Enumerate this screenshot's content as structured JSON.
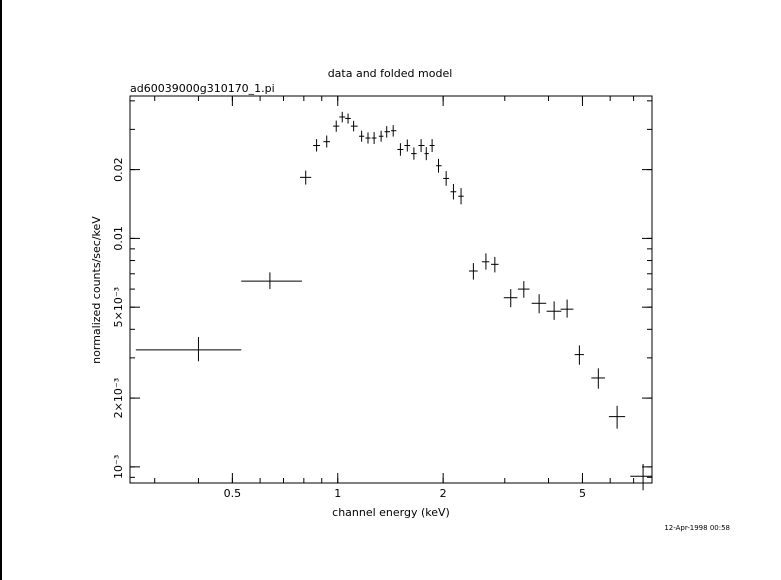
{
  "chart_data": {
    "type": "scatter",
    "title": "data and folded model",
    "subtitle": "ad60039000g310170_1.pi",
    "xlabel": "channel energy (keV)",
    "ylabel": "normalized counts/sec/keV",
    "timestamp": "12-Apr-1998 00:58",
    "x_scale": "log",
    "y_scale": "log",
    "xlim": [
      0.255,
      7.9
    ],
    "ylim": [
      0.00085,
      0.042
    ],
    "x_ticks": [
      {
        "value": 0.5,
        "label": "0.5"
      },
      {
        "value": 1,
        "label": "1"
      },
      {
        "value": 2,
        "label": "2"
      },
      {
        "value": 5,
        "label": "5"
      }
    ],
    "y_ticks": [
      {
        "value": 0.001,
        "label": "10⁻³"
      },
      {
        "value": 0.002,
        "label": "2×10⁻³"
      },
      {
        "value": 0.005,
        "label": "5×10⁻³"
      },
      {
        "value": 0.01,
        "label": "0.01"
      },
      {
        "value": 0.02,
        "label": "0.02"
      }
    ],
    "grid": false,
    "legend": "none",
    "points": [
      {
        "x": 0.4,
        "xlo": 0.265,
        "xhi": 0.53,
        "y": 0.00325,
        "ylo": 0.0029,
        "yhi": 0.0037
      },
      {
        "x": 0.64,
        "xlo": 0.53,
        "xhi": 0.79,
        "y": 0.0065,
        "ylo": 0.006,
        "yhi": 0.0071
      },
      {
        "x": 0.81,
        "xlo": 0.78,
        "xhi": 0.84,
        "y": 0.0185,
        "ylo": 0.0172,
        "yhi": 0.0198
      },
      {
        "x": 0.87,
        "xlo": 0.85,
        "xhi": 0.89,
        "y": 0.0255,
        "ylo": 0.024,
        "yhi": 0.0272
      },
      {
        "x": 0.93,
        "xlo": 0.91,
        "xhi": 0.95,
        "y": 0.0265,
        "ylo": 0.025,
        "yhi": 0.0282
      },
      {
        "x": 0.99,
        "xlo": 0.97,
        "xhi": 1.01,
        "y": 0.031,
        "ylo": 0.0293,
        "yhi": 0.0328
      },
      {
        "x": 1.03,
        "xlo": 1.01,
        "xhi": 1.05,
        "y": 0.034,
        "ylo": 0.0322,
        "yhi": 0.0358
      },
      {
        "x": 1.07,
        "xlo": 1.05,
        "xhi": 1.09,
        "y": 0.0335,
        "ylo": 0.0318,
        "yhi": 0.0352
      },
      {
        "x": 1.11,
        "xlo": 1.09,
        "xhi": 1.14,
        "y": 0.031,
        "ylo": 0.0294,
        "yhi": 0.0327
      },
      {
        "x": 1.17,
        "xlo": 1.15,
        "xhi": 1.19,
        "y": 0.028,
        "ylo": 0.0265,
        "yhi": 0.0296
      },
      {
        "x": 1.22,
        "xlo": 1.2,
        "xhi": 1.24,
        "y": 0.0275,
        "ylo": 0.026,
        "yhi": 0.0291
      },
      {
        "x": 1.27,
        "xlo": 1.25,
        "xhi": 1.29,
        "y": 0.0275,
        "ylo": 0.0259,
        "yhi": 0.0292
      },
      {
        "x": 1.33,
        "xlo": 1.31,
        "xhi": 1.35,
        "y": 0.028,
        "ylo": 0.0265,
        "yhi": 0.0296
      },
      {
        "x": 1.38,
        "xlo": 1.36,
        "xhi": 1.41,
        "y": 0.0293,
        "ylo": 0.0276,
        "yhi": 0.031
      },
      {
        "x": 1.44,
        "xlo": 1.42,
        "xhi": 1.47,
        "y": 0.0296,
        "ylo": 0.0279,
        "yhi": 0.0313
      },
      {
        "x": 1.51,
        "xlo": 1.48,
        "xhi": 1.54,
        "y": 0.0245,
        "ylo": 0.023,
        "yhi": 0.0261
      },
      {
        "x": 1.58,
        "xlo": 1.55,
        "xhi": 1.61,
        "y": 0.0255,
        "ylo": 0.024,
        "yhi": 0.0271
      },
      {
        "x": 1.65,
        "xlo": 1.62,
        "xhi": 1.68,
        "y": 0.0235,
        "ylo": 0.0221,
        "yhi": 0.025
      },
      {
        "x": 1.73,
        "xlo": 1.7,
        "xhi": 1.77,
        "y": 0.0255,
        "ylo": 0.0239,
        "yhi": 0.0272
      },
      {
        "x": 1.79,
        "xlo": 1.77,
        "xhi": 1.82,
        "y": 0.0235,
        "ylo": 0.022,
        "yhi": 0.0251
      },
      {
        "x": 1.86,
        "xlo": 1.83,
        "xhi": 1.89,
        "y": 0.0255,
        "ylo": 0.0239,
        "yhi": 0.0272
      },
      {
        "x": 1.94,
        "xlo": 1.91,
        "xhi": 1.98,
        "y": 0.0208,
        "ylo": 0.0194,
        "yhi": 0.0223
      },
      {
        "x": 2.04,
        "xlo": 2.0,
        "xhi": 2.08,
        "y": 0.0183,
        "ylo": 0.017,
        "yhi": 0.0197
      },
      {
        "x": 2.14,
        "xlo": 2.1,
        "xhi": 2.18,
        "y": 0.016,
        "ylo": 0.0148,
        "yhi": 0.0173
      },
      {
        "x": 2.25,
        "xlo": 2.21,
        "xhi": 2.29,
        "y": 0.0153,
        "ylo": 0.0141,
        "yhi": 0.0166
      },
      {
        "x": 2.44,
        "xlo": 2.37,
        "xhi": 2.51,
        "y": 0.0072,
        "ylo": 0.0066,
        "yhi": 0.0078
      },
      {
        "x": 2.65,
        "xlo": 2.58,
        "xhi": 2.71,
        "y": 0.0079,
        "ylo": 0.0073,
        "yhi": 0.0086
      },
      {
        "x": 2.81,
        "xlo": 2.74,
        "xhi": 2.88,
        "y": 0.0077,
        "ylo": 0.0071,
        "yhi": 0.0083
      },
      {
        "x": 3.12,
        "xlo": 2.98,
        "xhi": 3.26,
        "y": 0.0055,
        "ylo": 0.005,
        "yhi": 0.006
      },
      {
        "x": 3.4,
        "xlo": 3.27,
        "xhi": 3.53,
        "y": 0.006,
        "ylo": 0.0055,
        "yhi": 0.0065
      },
      {
        "x": 3.76,
        "xlo": 3.58,
        "xhi": 3.94,
        "y": 0.0052,
        "ylo": 0.0047,
        "yhi": 0.0057
      },
      {
        "x": 4.15,
        "xlo": 3.95,
        "xhi": 4.35,
        "y": 0.0048,
        "ylo": 0.0044,
        "yhi": 0.0053
      },
      {
        "x": 4.52,
        "xlo": 4.33,
        "xhi": 4.71,
        "y": 0.0049,
        "ylo": 0.0045,
        "yhi": 0.0054
      },
      {
        "x": 4.9,
        "xlo": 4.75,
        "xhi": 5.05,
        "y": 0.0031,
        "ylo": 0.0028,
        "yhi": 0.0034
      },
      {
        "x": 5.55,
        "xlo": 5.3,
        "xhi": 5.8,
        "y": 0.00245,
        "ylo": 0.0022,
        "yhi": 0.0027
      },
      {
        "x": 6.28,
        "xlo": 5.95,
        "xhi": 6.62,
        "y": 0.00166,
        "ylo": 0.00147,
        "yhi": 0.00185
      },
      {
        "x": 7.45,
        "xlo": 6.85,
        "xhi": 7.9,
        "y": 0.00091,
        "ylo": 0.00079,
        "yhi": 0.00103
      }
    ]
  }
}
